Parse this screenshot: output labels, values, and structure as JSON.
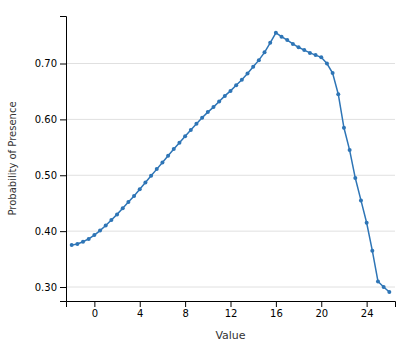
{
  "chart_data": {
    "type": "line",
    "x": [
      -2,
      -1.5,
      -1,
      -0.5,
      0,
      0.5,
      1,
      1.5,
      2,
      2.5,
      3,
      3.5,
      4,
      4.5,
      5,
      5.5,
      6,
      6.5,
      7,
      7.5,
      8,
      8.5,
      9,
      9.5,
      10,
      10.5,
      11,
      11.5,
      12,
      12.5,
      13,
      13.5,
      14,
      14.5,
      15,
      15.5,
      16,
      16.5,
      17,
      17.5,
      18,
      18.5,
      19,
      19.5,
      20,
      20.5,
      21,
      21.5,
      22,
      22.5,
      23,
      23.5,
      24,
      24.5,
      25,
      25.5,
      26
    ],
    "values": [
      0.375,
      0.377,
      0.381,
      0.386,
      0.393,
      0.401,
      0.41,
      0.42,
      0.43,
      0.441,
      0.452,
      0.463,
      0.475,
      0.487,
      0.499,
      0.511,
      0.523,
      0.535,
      0.547,
      0.558,
      0.57,
      0.581,
      0.592,
      0.603,
      0.613,
      0.622,
      0.632,
      0.642,
      0.651,
      0.661,
      0.671,
      0.682,
      0.694,
      0.706,
      0.72,
      0.737,
      0.755,
      0.748,
      0.742,
      0.735,
      0.729,
      0.724,
      0.719,
      0.715,
      0.711,
      0.7,
      0.683,
      0.645,
      0.585,
      0.545,
      0.495,
      0.455,
      0.415,
      0.365,
      0.31,
      0.3,
      0.291
    ],
    "color": "#2E75B6",
    "marker": "circle",
    "xlabel": "Value",
    "ylabel": "Probability of Presence",
    "xlim": [
      -2.5,
      26.5
    ],
    "ylim": [
      0.275,
      0.785
    ],
    "xticks": [
      0,
      4,
      8,
      12,
      16,
      20,
      24
    ],
    "yticks": [
      {
        "value": 0.3,
        "label": "0.30"
      },
      {
        "value": 0.4,
        "label": "0.40"
      },
      {
        "value": 0.5,
        "label": "0.50"
      },
      {
        "value": 0.6,
        "label": "0.60"
      },
      {
        "value": 0.7,
        "label": "0.70"
      }
    ],
    "grid": true
  }
}
